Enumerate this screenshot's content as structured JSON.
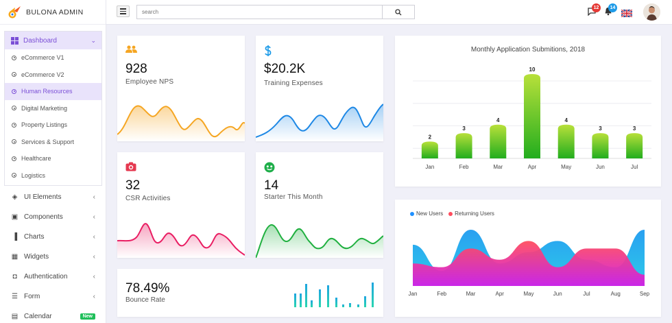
{
  "brand": {
    "name": "BULONA ADMIN"
  },
  "sidebar": {
    "dashboard": {
      "label": "Dashboard",
      "items": [
        "eCommerce V1",
        "eCommerce V2",
        "Human Resources",
        "Digital Marketing",
        "Property Listings",
        "Services & Support",
        "Healthcare",
        "Logistics"
      ],
      "active": "Human Resources"
    },
    "nav": [
      {
        "label": "UI Elements",
        "icon": "layers-icon"
      },
      {
        "label": "Components",
        "icon": "briefcase-icon"
      },
      {
        "label": "Charts",
        "icon": "bar-chart-icon"
      },
      {
        "label": "Widgets",
        "icon": "widgets-icon"
      },
      {
        "label": "Authentication",
        "icon": "lock-icon"
      },
      {
        "label": "Form",
        "icon": "list-icon"
      },
      {
        "label": "Calendar",
        "icon": "calendar-icon",
        "badge": "New"
      }
    ]
  },
  "topbar": {
    "search_placeholder": "search",
    "messages_count": "12",
    "notifications_count": "14"
  },
  "stats": {
    "employee": {
      "value": "928",
      "label": "Employee NPS",
      "color": "#f5a623"
    },
    "training": {
      "value": "$20.2K",
      "label": "Training Expenses",
      "color": "#1e88e5"
    },
    "csr": {
      "value": "32",
      "label": "CSR Activities",
      "color": "#e91e63"
    },
    "starter": {
      "value": "14",
      "label": "Starter This Month",
      "color": "#20b040"
    },
    "bounce": {
      "value": "78.49%",
      "label": "Bounce Rate",
      "color": "#20c0c8"
    }
  },
  "chart_data": [
    {
      "type": "bar",
      "title": "Monthly Application Submitions, 2018",
      "categories": [
        "Jan",
        "Feb",
        "Mar",
        "Apr",
        "May",
        "Jun",
        "Jul"
      ],
      "values": [
        2,
        3,
        4,
        10,
        4,
        3,
        3
      ],
      "ylim": [
        0,
        10
      ],
      "grid": true,
      "colors": {
        "top": "#b8e03a",
        "bottom": "#22ad1e"
      }
    },
    {
      "type": "area",
      "categories": [
        "Jan",
        "Feb",
        "Mar",
        "Apr",
        "May",
        "Jun",
        "Jul",
        "Aug",
        "Sep"
      ],
      "series": [
        {
          "name": "New Users",
          "color": "#1e90ff",
          "values": [
            55,
            20,
            75,
            30,
            45,
            60,
            35,
            25,
            75
          ]
        },
        {
          "name": "Returning Users",
          "color": "#ff4d5e",
          "values": [
            30,
            25,
            50,
            35,
            60,
            25,
            50,
            50,
            15
          ]
        }
      ],
      "legend": "top-left"
    }
  ]
}
